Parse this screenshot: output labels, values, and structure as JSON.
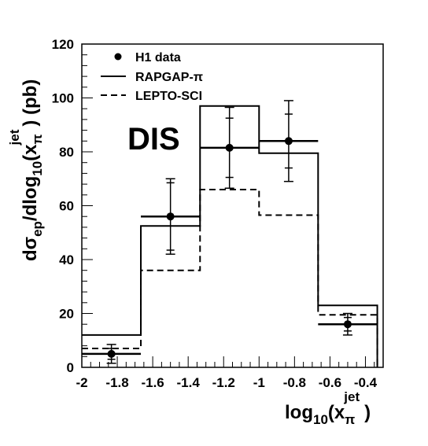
{
  "chart_data": {
    "type": "histogram",
    "annotation": "DIS",
    "xlabel": {
      "base": "log",
      "sub1": "10",
      "open": "(x",
      "sub2": "π",
      "sup": "jet",
      "close": ")"
    },
    "ylabel": {
      "pre": "dσ",
      "sub1": "ep",
      "mid": "/dlog",
      "sub2": "10",
      "open": "(x",
      "sub3": "π",
      "sup": "jet",
      "close": ") (pb)"
    },
    "xlim": [
      -2.0,
      -0.3
    ],
    "ylim": [
      0,
      120
    ],
    "xticks": [
      -2,
      -1.8,
      -1.6,
      -1.4,
      -1.2,
      -1,
      -0.8,
      -0.6,
      -0.4
    ],
    "xtick_labels": [
      "-2",
      "-1.8",
      "-1.6",
      "-1.4",
      "-1.2",
      "-1",
      "-0.8",
      "-0.6",
      "-0.4"
    ],
    "yticks": [
      0,
      20,
      40,
      60,
      80,
      100,
      120
    ],
    "ytick_labels": [
      "0",
      "20",
      "40",
      "60",
      "80",
      "100",
      "120"
    ],
    "bin_edges": [
      -2.0,
      -1.667,
      -1.333,
      -1.0,
      -0.667,
      -0.333
    ],
    "legend": {
      "position": "top-left",
      "entries": [
        "H1 data",
        "RAPGAP-π",
        "LEPTO-SCI"
      ]
    },
    "series": [
      {
        "name": "H1 data",
        "style": "points",
        "x": [
          -1.833,
          -1.5,
          -1.167,
          -0.833,
          -0.5
        ],
        "y": [
          5,
          56,
          81.5,
          84,
          16
        ],
        "err_stat": [
          2,
          12.5,
          11,
          10,
          2.5
        ],
        "err_total": [
          3.5,
          14,
          15,
          15,
          4
        ]
      },
      {
        "name": "RAPGAP-π",
        "style": "solid",
        "values": [
          12,
          52.5,
          97,
          79.5,
          23
        ]
      },
      {
        "name": "LEPTO-SCI",
        "style": "dashed",
        "values": [
          7,
          36,
          66,
          56.5,
          19.5
        ]
      }
    ]
  }
}
